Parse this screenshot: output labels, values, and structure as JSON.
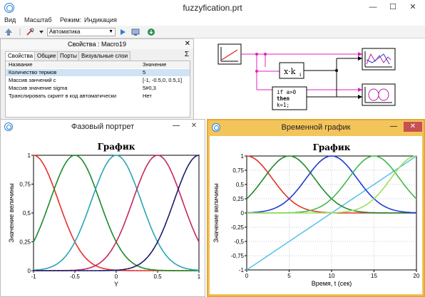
{
  "app": {
    "title": "fuzzyfication.prt",
    "minimize": "—",
    "maximize": "☐",
    "close": "✕"
  },
  "menu": {
    "items": [
      "Вид",
      "Масштаб",
      "Режим:",
      "Индикация"
    ]
  },
  "toolbar": {
    "mode_select_value": "Автоматика"
  },
  "properties": {
    "title": "Свойства :  Macro19",
    "close": "✕",
    "sigma": "Σ",
    "tabs": [
      "Свойства",
      "Общие",
      "Порты",
      "Визуальные слои"
    ],
    "columns": {
      "name": "Название",
      "value": "Значение"
    },
    "rows": [
      {
        "name": "Количество термов",
        "value": "5"
      },
      {
        "name": "Массив занчений c",
        "value": "[-1, -0.5,0, 0.5,1]"
      },
      {
        "name": "Массив значение sigma",
        "value": "5#0,3"
      },
      {
        "name": "Транслировать скрипт в код автоматически",
        "value": "Нет"
      }
    ]
  },
  "diagram": {
    "gain_label": "x·k",
    "gain_sub": "i",
    "script_lines": [
      "if a>0",
      "then",
      "k=1;"
    ]
  },
  "left_window": {
    "title": "Фазовый портрет",
    "minimize": "—",
    "close": "✕"
  },
  "right_window": {
    "title": "Временной график",
    "minimize": "—",
    "close": "✕"
  },
  "chart_data": [
    {
      "type": "line",
      "title": "График",
      "xlabel": "Y",
      "ylabel": "Значение величины",
      "xlim": [
        -1,
        1
      ],
      "ylim": [
        0,
        1
      ],
      "x_ticks": [
        "-1",
        "-0.5",
        "0",
        "0.5",
        "1"
      ],
      "y_ticks": [
        "0",
        "0,25",
        "0,5",
        "0,75",
        "1"
      ],
      "grid": false,
      "series": [
        {
          "center": -1,
          "sigma": 0.3,
          "color": "#e8302a"
        },
        {
          "center": -0.5,
          "sigma": 0.3,
          "color": "#1f8a2a"
        },
        {
          "center": 0,
          "sigma": 0.3,
          "color": "#2aa6b4"
        },
        {
          "center": 0.5,
          "sigma": 0.3,
          "color": "#c42a5c"
        },
        {
          "center": 1,
          "sigma": 0.3,
          "color": "#1c1f6e"
        }
      ]
    },
    {
      "type": "line",
      "title": "График",
      "xlabel": "Время, t (сек)",
      "ylabel": "Значение величины",
      "xlim": [
        0,
        20
      ],
      "ylim": [
        -1,
        1
      ],
      "x_ticks": [
        "0",
        "5",
        "10",
        "15",
        "20"
      ],
      "y_ticks": [
        "-1",
        "-0,75",
        "-0,5",
        "-0,25",
        "0",
        "0,25",
        "0,5",
        "0,75",
        "1"
      ],
      "grid": true,
      "series": [
        {
          "type": "ramp",
          "from": [
            0,
            -1
          ],
          "to": [
            20,
            1
          ],
          "color": "#5bc2e8"
        },
        {
          "center": 0,
          "sigma": 3,
          "color": "#e8302a"
        },
        {
          "center": 5,
          "sigma": 3,
          "color": "#1f8a2a"
        },
        {
          "center": 10,
          "sigma": 3,
          "color": "#1f3bd6"
        },
        {
          "center": 15,
          "sigma": 3,
          "color": "#43b84a"
        },
        {
          "center": 20,
          "sigma": 3,
          "color": "#9ae05a"
        }
      ]
    }
  ]
}
